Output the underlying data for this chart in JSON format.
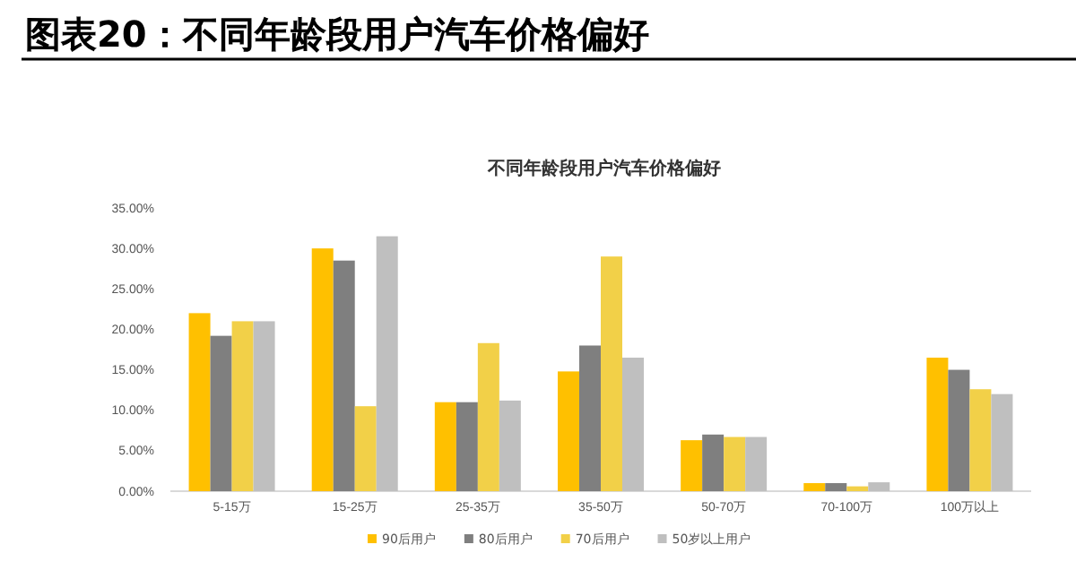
{
  "chart_data": {
    "type": "bar",
    "title": "图表20：不同年龄段用户汽车价格偏好",
    "subtitle": "不同年龄段用户汽车价格偏好",
    "categories": [
      "5-15万",
      "15-25万",
      "25-35万",
      "35-50万",
      "50-70万",
      "70-100万",
      "100万以上"
    ],
    "series": [
      {
        "name": "90后用户",
        "color": "#ffc000",
        "values": [
          22,
          30,
          11,
          14.8,
          6.3,
          1,
          16.5
        ]
      },
      {
        "name": "80后用户",
        "color": "#7f7f7f",
        "values": [
          19.2,
          28.5,
          11,
          18,
          7,
          1,
          15
        ]
      },
      {
        "name": "70后用户",
        "color": "#f2d048",
        "values": [
          21,
          10.5,
          18.3,
          29,
          6.7,
          0.6,
          12.6
        ]
      },
      {
        "name": "50岁以上用户",
        "color": "#bfbfbf",
        "values": [
          21,
          31.5,
          11.2,
          16.5,
          6.7,
          1.1,
          12
        ]
      }
    ],
    "ylim": [
      0,
      35
    ],
    "yticks": [
      {
        "value": 0,
        "label": "0.00%"
      },
      {
        "value": 5,
        "label": "5.00%"
      },
      {
        "value": 10,
        "label": "10.00%"
      },
      {
        "value": 15,
        "label": "15.00%"
      },
      {
        "value": 20,
        "label": "20.00%"
      },
      {
        "value": 25,
        "label": "25.00%"
      },
      {
        "value": 30,
        "label": "30.00%"
      },
      {
        "value": 35,
        "label": "35.00%"
      }
    ],
    "legend": "bottom"
  }
}
